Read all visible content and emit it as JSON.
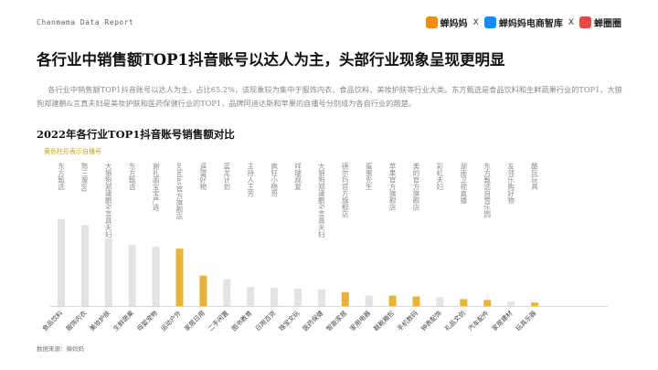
{
  "header": {
    "report_name": "Chanmama Data Report",
    "brands": [
      {
        "name": "蝉妈妈",
        "color": "#f08c1a"
      },
      {
        "name": "蝉妈妈电商智库",
        "color": "#1a8cf0"
      },
      {
        "name": "蝉圈圈",
        "color": "#e84a4a"
      }
    ],
    "separator": "X"
  },
  "main_title": "各行业中销售额TOP1抖音账号以达人为主，头部行业现象呈现更明显",
  "description": "各行业中销售额TOP1抖音账号以达人为主，占比65.2%，该现象较为集中于服饰内衣、食品饮料、美妆护肤等行业大类。东方甄选是食品饮料和生鲜蔬果行业的TOP1，大狼狗郑建鹏&言真夫妇是美妆护肤和医药保健行业的TOP1，品牌阿迪达斯和苹果的自播号分别成为各自行业的翘楚。",
  "chart_data": {
    "type": "bar",
    "title": "2022年各行业TOP1抖音账号销售额对比",
    "subtitle": "黄色柱形表示自播号",
    "colors": {
      "influencer": "#e3e3e3",
      "self_broadcast": "#e6b43a"
    },
    "categories": [
      "食品饮料",
      "服饰内衣",
      "美妆护肤",
      "生鲜蔬果",
      "母婴宠物",
      "运动户外",
      "家居日用",
      "二手闲置",
      "图书教育",
      "日用百货",
      "珠宝文玩",
      "医药保健",
      "智能家居",
      "家用电器",
      "鞋靴箱包",
      "手机数码",
      "钟表配饰",
      "礼品文创",
      "汽车配件",
      "家居建材",
      "玩具乐器"
    ],
    "accounts": [
      "东方甄选",
      "陈三废gg",
      "大狼狗郑建鹏&言真夫妇",
      "东方甄选",
      "谢礼菡宝宝严选",
      "adidas官方旗舰店",
      "遥望好物",
      "蓝龙计划",
      "主持人王芳",
      "疯狂小杨哥",
      "祥瑞观复",
      "大狼狗郑建鹏&言真夫妇",
      "德尔玛官方旗舰店",
      "蛋蛋先生",
      "苹果官方旗舰店",
      "美的官方旗舰店",
      "彩虹夫妇",
      "湖南卫视直播",
      "东方甄选自营乐园",
      "友邻乐购好物",
      "酷玩玩具"
    ],
    "values": [
      100,
      93,
      78,
      70,
      68,
      66,
      35,
      31,
      22,
      21,
      20,
      19,
      16,
      12,
      12,
      11,
      10,
      8,
      7,
      5,
      4
    ],
    "self_broadcast": [
      false,
      false,
      false,
      false,
      false,
      true,
      true,
      false,
      false,
      false,
      false,
      false,
      true,
      false,
      true,
      true,
      false,
      true,
      true,
      false,
      true
    ],
    "ylim": [
      0,
      105
    ]
  },
  "source": "数据来源：蝉妈妈"
}
